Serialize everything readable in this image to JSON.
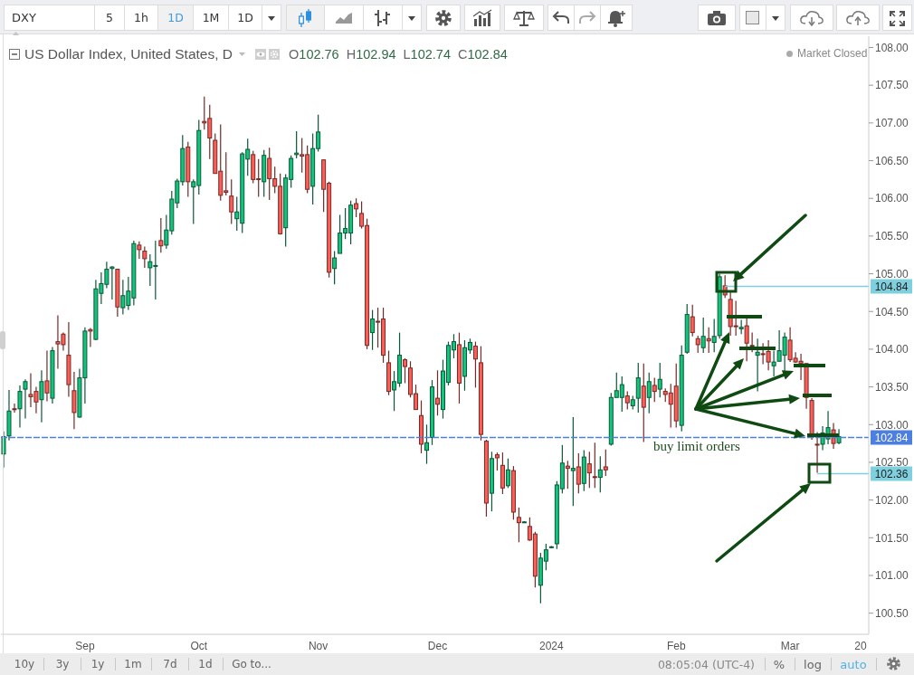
{
  "chart_data": {
    "type": "candlestick",
    "title": "US Dollar Index, United States, D",
    "subtitle": "O102.76 H102.94 L102.74 C102.84",
    "annotations": [
      "Market Closed",
      "buy limit orders",
      "DXY",
      "5",
      "1h",
      "1D",
      "1M",
      "1D",
      "10y",
      "3y",
      "1y",
      "1m",
      "7d",
      "1d",
      "Go to...",
      "08:05:04 (UTC-4)",
      "%",
      "log",
      "auto"
    ],
    "categories": [
      null,
      null,
      null,
      null,
      null,
      null,
      null,
      null,
      null,
      null,
      null,
      null,
      null,
      null,
      null,
      "Sep",
      null,
      null,
      null,
      null,
      null,
      null,
      null,
      null,
      null,
      null,
      null,
      null,
      null,
      null,
      null,
      null,
      null,
      null,
      null,
      null,
      "Oct",
      null,
      null,
      null,
      null,
      null,
      null,
      null,
      null,
      null,
      null,
      null,
      null,
      null,
      null,
      null,
      null,
      null,
      null,
      null,
      null,
      null,
      "Nov",
      null,
      null,
      null,
      null,
      null,
      null,
      null,
      null,
      null,
      null,
      null,
      null,
      null,
      null,
      null,
      null,
      null,
      null,
      null,
      null,
      null,
      "Dec",
      null,
      null,
      null,
      null,
      null,
      null,
      null,
      null,
      null,
      null,
      null,
      null,
      null,
      null,
      null,
      null,
      null,
      null,
      null,
      null,
      "2024",
      null,
      null,
      null,
      null,
      null,
      null,
      null,
      null,
      null,
      null,
      null,
      null,
      null,
      null,
      null,
      null,
      null,
      null,
      null,
      null,
      null,
      null,
      "Feb",
      null,
      null,
      null,
      null,
      null,
      null,
      null,
      null,
      null,
      null,
      null,
      null,
      null,
      null,
      null,
      null,
      null,
      null,
      null,
      null,
      "Mar",
      null,
      null,
      null,
      null,
      null,
      null,
      null,
      null,
      null,
      null,
      null,
      null,
      "20",
      null
    ],
    "ohlc": [
      [
        102.61,
        102.91,
        102.43,
        102.84
      ],
      [
        102.85,
        103.46,
        102.79,
        103.18
      ],
      [
        103.21,
        103.28,
        103.16,
        103.2
      ],
      [
        103.21,
        103.52,
        102.96,
        103.44
      ],
      [
        103.47,
        103.6,
        103.08,
        103.57
      ],
      [
        103.4,
        103.68,
        103.23,
        103.37
      ],
      [
        103.44,
        103.5,
        103.15,
        103.3
      ],
      [
        103.33,
        103.72,
        103.03,
        103.57
      ],
      [
        103.58,
        103.98,
        103.31,
        103.42
      ],
      [
        103.35,
        104.03,
        103.28,
        103.98
      ],
      [
        104.1,
        104.45,
        103.74,
        104.07
      ],
      [
        104.2,
        104.22,
        103.98,
        104.06
      ],
      [
        103.92,
        104.36,
        103.37,
        103.53
      ],
      [
        103.45,
        103.7,
        102.94,
        103.16
      ],
      [
        103.1,
        103.74,
        103.09,
        103.62
      ],
      [
        103.62,
        104.29,
        103.28,
        104.24
      ],
      [
        104.26,
        104.28,
        104.03,
        104.24
      ],
      [
        104.13,
        104.92,
        104.12,
        104.8
      ],
      [
        104.74,
        105.02,
        104.6,
        104.87
      ],
      [
        104.86,
        105.16,
        104.81,
        105.06
      ],
      [
        105.07,
        105.1,
        104.66,
        105.09
      ],
      [
        105.06,
        105.06,
        104.43,
        104.56
      ],
      [
        104.55,
        104.92,
        104.46,
        104.71
      ],
      [
        104.58,
        104.96,
        104.52,
        104.77
      ],
      [
        104.68,
        105.44,
        104.58,
        105.4
      ],
      [
        105.38,
        105.43,
        105.2,
        105.32
      ],
      [
        105.3,
        105.36,
        105.08,
        105.2
      ],
      [
        105.08,
        105.26,
        104.84,
        105.16
      ],
      [
        105.1,
        105.44,
        104.66,
        105.11
      ],
      [
        105.44,
        105.74,
        105.28,
        105.37
      ],
      [
        105.38,
        105.78,
        105.33,
        105.58
      ],
      [
        105.57,
        106.1,
        105.52,
        105.99
      ],
      [
        105.94,
        106.26,
        105.87,
        106.23
      ],
      [
        106.22,
        106.84,
        106.17,
        106.66
      ],
      [
        106.68,
        106.75,
        106.02,
        106.22
      ],
      [
        106.15,
        106.25,
        105.66,
        106.22
      ],
      [
        106.17,
        107.04,
        106.05,
        106.9
      ],
      [
        107.02,
        107.35,
        106.91,
        107.0
      ],
      [
        107.06,
        107.24,
        106.52,
        106.8
      ],
      [
        106.77,
        106.86,
        106.33,
        106.33
      ],
      [
        106.36,
        106.98,
        105.97,
        106.04
      ],
      [
        106.1,
        106.61,
        106.04,
        106.08
      ],
      [
        106.03,
        106.25,
        105.66,
        105.82
      ],
      [
        105.73,
        106.02,
        105.57,
        105.82
      ],
      [
        105.67,
        106.61,
        105.54,
        106.59
      ],
      [
        106.52,
        106.79,
        106.3,
        106.65
      ],
      [
        106.58,
        106.63,
        106.2,
        106.25
      ],
      [
        106.26,
        106.52,
        106.02,
        106.25
      ],
      [
        106.22,
        106.64,
        106.02,
        106.57
      ],
      [
        106.53,
        106.67,
        105.98,
        106.26
      ],
      [
        106.26,
        106.42,
        106.07,
        106.16
      ],
      [
        106.16,
        106.33,
        105.52,
        105.53
      ],
      [
        105.61,
        106.32,
        105.36,
        106.27
      ],
      [
        106.25,
        106.57,
        106.14,
        106.53
      ],
      [
        106.58,
        106.89,
        106.53,
        106.6
      ],
      [
        106.58,
        106.8,
        106.34,
        106.56
      ],
      [
        106.58,
        106.7,
        106.07,
        106.12
      ],
      [
        106.16,
        106.86,
        105.92,
        106.66
      ],
      [
        106.66,
        107.11,
        106.62,
        106.88
      ],
      [
        106.51,
        106.51,
        105.82,
        106.12
      ],
      [
        106.2,
        106.22,
        104.95,
        105.02
      ],
      [
        105.07,
        105.3,
        104.86,
        105.21
      ],
      [
        105.27,
        105.78,
        105.27,
        105.54
      ],
      [
        105.54,
        105.87,
        105.46,
        105.6
      ],
      [
        105.54,
        105.97,
        105.39,
        105.91
      ],
      [
        105.93,
        106.0,
        105.75,
        105.86
      ],
      [
        105.8,
        105.96,
        105.6,
        105.63
      ],
      [
        105.64,
        105.73,
        104.0,
        104.05
      ],
      [
        104.22,
        104.52,
        103.99,
        104.4
      ],
      [
        104.37,
        104.55,
        104.02,
        104.36
      ],
      [
        104.4,
        104.55,
        103.82,
        103.92
      ],
      [
        103.82,
        103.98,
        103.39,
        103.44
      ],
      [
        103.46,
        103.71,
        103.18,
        103.57
      ],
      [
        103.55,
        104.22,
        103.5,
        103.92
      ],
      [
        103.86,
        103.88,
        103.55,
        103.77
      ],
      [
        103.75,
        103.84,
        103.36,
        103.4
      ],
      [
        103.41,
        103.53,
        103.2,
        103.2
      ],
      [
        103.12,
        103.32,
        102.62,
        102.74
      ],
      [
        102.66,
        103.0,
        102.48,
        102.76
      ],
      [
        102.83,
        103.59,
        102.73,
        103.5
      ],
      [
        103.35,
        103.72,
        103.12,
        103.27
      ],
      [
        103.2,
        103.86,
        103.08,
        103.71
      ],
      [
        103.56,
        104.1,
        103.52,
        104.05
      ],
      [
        103.99,
        104.2,
        103.88,
        104.1
      ],
      [
        104.06,
        104.22,
        103.28,
        103.55
      ],
      [
        103.64,
        104.12,
        103.45,
        104.02
      ],
      [
        103.99,
        104.14,
        103.94,
        104.09
      ],
      [
        104.04,
        104.1,
        103.49,
        103.87
      ],
      [
        103.82,
        104.04,
        102.79,
        102.87
      ],
      [
        102.78,
        102.8,
        101.78,
        101.96
      ],
      [
        102.09,
        102.64,
        101.85,
        102.55
      ],
      [
        102.6,
        102.63,
        102.39,
        102.56
      ],
      [
        102.46,
        102.63,
        102.08,
        102.16
      ],
      [
        102.19,
        102.55,
        102.16,
        102.4
      ],
      [
        102.39,
        102.45,
        101.74,
        101.84
      ],
      [
        101.77,
        101.9,
        101.44,
        101.7
      ],
      [
        101.71,
        101.72,
        101.7,
        101.71
      ],
      [
        101.65,
        101.77,
        101.46,
        101.47
      ],
      [
        101.55,
        101.58,
        100.84,
        100.99
      ],
      [
        100.87,
        101.3,
        100.63,
        101.23
      ],
      [
        101.19,
        101.42,
        101.07,
        101.34
      ],
      [
        101.38,
        101.39,
        101.37,
        101.38
      ],
      [
        101.42,
        102.25,
        101.35,
        102.2
      ],
      [
        102.15,
        102.73,
        102.09,
        102.49
      ],
      [
        102.45,
        102.52,
        102.15,
        102.42
      ],
      [
        102.39,
        103.1,
        101.92,
        102.42
      ],
      [
        102.44,
        102.62,
        102.09,
        102.21
      ],
      [
        102.22,
        102.66,
        102.12,
        102.57
      ],
      [
        102.48,
        102.64,
        102.16,
        102.36
      ],
      [
        102.31,
        102.76,
        102.16,
        102.3
      ],
      [
        102.3,
        102.58,
        102.1,
        102.4
      ],
      [
        102.44,
        102.67,
        102.32,
        102.4
      ],
      [
        102.74,
        103.42,
        102.72,
        103.36
      ],
      [
        103.36,
        103.69,
        103.36,
        103.45
      ],
      [
        103.36,
        103.64,
        103.17,
        103.53
      ],
      [
        103.38,
        103.44,
        103.2,
        103.29
      ],
      [
        103.25,
        103.38,
        103.2,
        103.33
      ],
      [
        103.35,
        103.82,
        103.16,
        103.62
      ],
      [
        103.51,
        103.81,
        102.77,
        103.23
      ],
      [
        103.36,
        103.69,
        103.15,
        103.57
      ],
      [
        103.52,
        103.62,
        103.3,
        103.44
      ],
      [
        103.47,
        103.82,
        103.36,
        103.6
      ],
      [
        103.44,
        103.48,
        103.3,
        103.4
      ],
      [
        103.42,
        103.54,
        102.96,
        103.27
      ],
      [
        103.51,
        103.81,
        102.96,
        103.05
      ],
      [
        102.99,
        104.05,
        102.91,
        103.92
      ],
      [
        103.96,
        104.6,
        103.94,
        104.46
      ],
      [
        104.43,
        104.59,
        104.17,
        104.22
      ],
      [
        104.14,
        104.18,
        103.95,
        104.06
      ],
      [
        104.02,
        104.42,
        103.95,
        104.17
      ],
      [
        104.14,
        104.29,
        103.95,
        104.11
      ],
      [
        104.09,
        104.4,
        103.96,
        104.17
      ],
      [
        104.18,
        105.0,
        104.14,
        104.96
      ],
      [
        104.84,
        104.98,
        104.68,
        104.72
      ],
      [
        104.66,
        104.78,
        104.18,
        104.3
      ],
      [
        104.31,
        104.64,
        104.18,
        104.3
      ],
      [
        104.27,
        104.39,
        104.2,
        104.29
      ],
      [
        104.31,
        104.42,
        103.84,
        104.08
      ],
      [
        104.05,
        104.22,
        103.96,
        104.04
      ],
      [
        103.92,
        104.14,
        103.44,
        103.96
      ],
      [
        103.94,
        104.08,
        103.8,
        103.93
      ],
      [
        103.97,
        104.12,
        103.72,
        103.83
      ],
      [
        103.78,
        103.98,
        103.64,
        103.83
      ],
      [
        103.84,
        104.25,
        103.84,
        103.98
      ],
      [
        103.92,
        104.22,
        103.71,
        104.16
      ],
      [
        104.12,
        104.29,
        103.83,
        103.86
      ],
      [
        103.88,
        103.96,
        103.82,
        103.83
      ],
      [
        103.84,
        103.94,
        103.59,
        103.81
      ],
      [
        103.81,
        103.81,
        103.21,
        103.36
      ],
      [
        103.32,
        103.35,
        102.8,
        102.83
      ],
      [
        102.74,
        102.9,
        102.36,
        102.73
      ],
      [
        102.74,
        102.98,
        102.66,
        102.89
      ],
      [
        102.81,
        103.18,
        102.74,
        102.96
      ],
      [
        102.93,
        103.02,
        102.68,
        102.75
      ],
      [
        102.76,
        102.94,
        102.74,
        102.84
      ],
      null,
      null,
      null,
      null,
      null
    ],
    "colors": [
      "#13c47c",
      "#13c47c",
      "#ff5d55",
      "#13c47c",
      "#13c47c",
      "#ff5d55",
      "#ff5d55",
      "#13c47c",
      "#ff5d55",
      "#13c47c",
      "#ff5d55",
      "#ff5d55",
      "#ff5d55",
      "#ff5d55",
      "#13c47c",
      "#13c47c",
      "#ff5d55",
      "#13c47c",
      "#13c47c",
      "#13c47c",
      "#13c47c",
      "#ff5d55",
      "#13c47c",
      "#13c47c",
      "#13c47c",
      "#ff5d55",
      "#ff5d55",
      "#13c47c",
      "#13c47c",
      "#ff5d55",
      "#13c47c",
      "#13c47c",
      "#13c47c",
      "#13c47c",
      "#ff5d55",
      "#13c47c",
      "#13c47c",
      "#ff5d55",
      "#ff5d55",
      "#ff5d55",
      "#ff5d55",
      "#ff5d55",
      "#ff5d55",
      "#13c47c",
      "#13c47c",
      "#13c47c",
      "#ff5d55",
      "#ff5d55",
      "#13c47c",
      "#ff5d55",
      "#ff5d55",
      "#ff5d55",
      "#13c47c",
      "#13c47c",
      "#13c47c",
      "#ff5d55",
      "#ff5d55",
      "#13c47c",
      "#13c47c",
      "#ff5d55",
      "#ff5d55",
      "#13c47c",
      "#13c47c",
      "#13c47c",
      "#13c47c",
      "#ff5d55",
      "#ff5d55",
      "#ff5d55",
      "#13c47c",
      "#ff5d55",
      "#ff5d55",
      "#ff5d55",
      "#13c47c",
      "#13c47c",
      "#ff5d55",
      "#ff5d55",
      "#ff5d55",
      "#ff5d55",
      "#13c47c",
      "#13c47c",
      "#ff5d55",
      "#13c47c",
      "#13c47c",
      "#13c47c",
      "#ff5d55",
      "#13c47c",
      "#13c47c",
      "#ff5d55",
      "#ff5d55",
      "#ff5d55",
      "#13c47c",
      "#ff5d55",
      "#ff5d55",
      "#13c47c",
      "#ff5d55",
      "#ff5d55",
      "#13c47c",
      "#ff5d55",
      "#ff5d55",
      "#13c47c",
      "#13c47c",
      "#13c47c",
      "#13c47c",
      "#13c47c",
      "#ff5d55",
      "#13c47c",
      "#ff5d55",
      "#13c47c",
      "#ff5d55",
      "#ff5d55",
      "#13c47c",
      "#ff5d55",
      "#13c47c",
      "#13c47c",
      "#13c47c",
      "#ff5d55",
      "#13c47c",
      "#13c47c",
      "#ff5d55",
      "#13c47c",
      "#ff5d55",
      "#13c47c",
      "#ff5d55",
      "#ff5d55",
      "#ff5d55",
      "#13c47c",
      "#13c47c",
      "#ff5d55",
      "#ff5d55",
      "#13c47c",
      "#ff5d55",
      "#13c47c",
      "#13c47c",
      "#ff5d55",
      "#ff5d55",
      "#ff5d55",
      "#13c47c",
      "#ff5d55",
      "#ff5d55",
      "#13c47c",
      "#ff5d55",
      "#ff5d55",
      "#13c47c",
      "#13c47c",
      "#13c47c",
      "#ff5d55",
      "#ff5d55",
      "#ff5d55",
      "#ff5d55",
      "#ff5d55",
      "#ff5d55",
      "#13c47c",
      "#13c47c",
      "#ff5d55",
      "#13c47c",
      null,
      null,
      null,
      null,
      null
    ],
    "ylim": [
      100.22,
      108.15
    ],
    "yticks": [
      {
        "value": 100.5,
        "label": "100.50"
      },
      {
        "value": 101,
        "label": "101.00"
      },
      {
        "value": 101.5,
        "label": "101.50"
      },
      {
        "value": 102,
        "label": "102.00"
      },
      {
        "value": 102.5,
        "label": "102.50"
      },
      {
        "value": 103,
        "label": "103.00"
      },
      {
        "value": 103.5,
        "label": "103.50"
      },
      {
        "value": 104,
        "label": "104.00"
      },
      {
        "value": 104.5,
        "label": "104.50"
      },
      {
        "value": 105,
        "label": "105.00"
      },
      {
        "value": 105.5,
        "label": "105.50"
      },
      {
        "value": 106,
        "label": "106.00"
      },
      {
        "value": 106.5,
        "label": "106.50"
      },
      {
        "value": 107,
        "label": "107.00"
      },
      {
        "value": 107.5,
        "label": "107.50"
      },
      {
        "value": 108,
        "label": "108.00"
      }
    ],
    "ref_lines": [
      {
        "axis": "y",
        "value": 104.84,
        "label": "104.84",
        "color": "#7fd0de",
        "line_style": "solid"
      },
      {
        "axis": "y",
        "value": 102.84,
        "label": "102.84",
        "color": "#4d7fe0",
        "line_style": "dashed"
      },
      {
        "axis": "y",
        "value": 102.36,
        "label": "102.36",
        "color": "#7fd0de",
        "line_style": "solid"
      }
    ]
  }
}
